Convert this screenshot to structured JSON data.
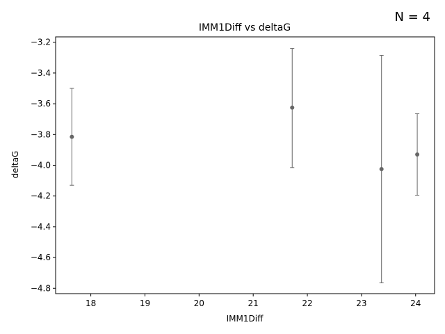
{
  "chart_data": {
    "type": "scatter",
    "title": "IMM1Diff vs deltaG",
    "xlabel": "IMM1Diff",
    "ylabel": "deltaG",
    "annotation": "N = 4",
    "xlim": [
      17.35,
      24.35
    ],
    "ylim": [
      -4.835,
      -3.165
    ],
    "x_ticks": [
      18,
      19,
      20,
      21,
      22,
      23,
      24
    ],
    "y_ticks": [
      -4.8,
      -4.6,
      -4.4,
      -4.2,
      -4.0,
      -3.8,
      -3.6,
      -3.4,
      -3.2
    ],
    "x_tick_labels": [
      "18",
      "19",
      "20",
      "21",
      "22",
      "23",
      "24"
    ],
    "y_tick_labels": [
      "−4.8",
      "−4.6",
      "−4.4",
      "−4.2",
      "−4.0",
      "−3.8",
      "−3.6",
      "−3.4",
      "−3.2"
    ],
    "grid": false,
    "marker_color": "#666666",
    "points": [
      {
        "x": 17.65,
        "y": -3.815,
        "y_low": -4.13,
        "y_high": -3.5
      },
      {
        "x": 21.72,
        "y": -3.625,
        "y_low": -4.015,
        "y_high": -3.24
      },
      {
        "x": 23.37,
        "y": -4.025,
        "y_low": -4.765,
        "y_high": -3.285
      },
      {
        "x": 24.03,
        "y": -3.93,
        "y_low": -4.195,
        "y_high": -3.665
      }
    ]
  }
}
